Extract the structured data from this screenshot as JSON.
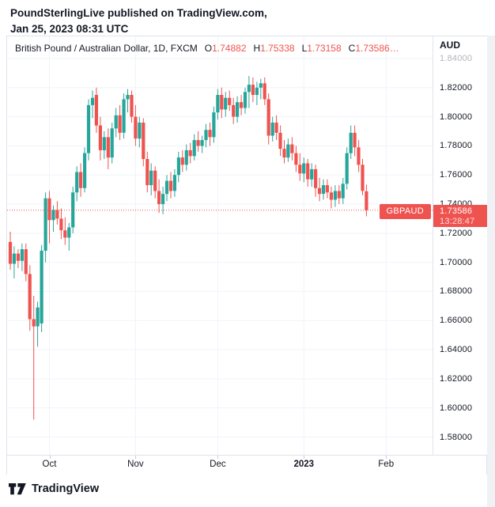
{
  "header": {
    "line1": "PoundSterlingLive published on TradingView.com,",
    "line2": "Jan 25, 2023 08:31 UTC"
  },
  "chart": {
    "title": "British Pound / Australian Dollar, 1D, FXCM",
    "ohlc": {
      "open_label": "O",
      "open": "1.74882",
      "high_label": "H",
      "high": "1.75338",
      "low_label": "L",
      "low": "1.73158",
      "close_label": "C",
      "close": "1.73586…"
    },
    "axis_currency": "AUD",
    "price_label": {
      "symbol": "GBPAUD",
      "price": "1.73586",
      "countdown": "13:28:47"
    }
  },
  "footer": {
    "brand": "TradingView"
  },
  "colors": {
    "up": "#26a69a",
    "down": "#ef5350",
    "badge": "#ef5350",
    "grid": "#f0f3fa",
    "border": "#e0e3eb",
    "text": "#131722",
    "axis_muted": "#b2b5be"
  },
  "chart_data": {
    "type": "candlestick",
    "symbol": "GBPAUD",
    "timeframe": "1D",
    "exchange": "FXCM",
    "title": "British Pound / Australian Dollar, 1D, FXCM",
    "ylabel": "AUD",
    "ylim": [
      1.5678,
      1.8552
    ],
    "y_ticks": [
      1.84,
      1.82,
      1.8,
      1.78,
      1.76,
      1.74,
      1.72,
      1.7,
      1.68,
      1.66,
      1.64,
      1.62,
      1.6,
      1.58
    ],
    "muted_ticks": [
      1.84
    ],
    "x_ticks": [
      {
        "label": "Oct",
        "i": 10
      },
      {
        "label": "Nov",
        "i": 32
      },
      {
        "label": "Dec",
        "i": 53
      },
      {
        "label": "2023",
        "i": 75,
        "bold": true
      },
      {
        "label": "Feb",
        "i": 96
      }
    ],
    "last_price": 1.73586,
    "last_ohlc": {
      "o": 1.74882,
      "h": 1.75338,
      "l": 1.73158,
      "c": 1.73586
    },
    "candles": [
      [
        1.714,
        1.721,
        1.695,
        1.699
      ],
      [
        1.699,
        1.711,
        1.689,
        1.706
      ],
      [
        1.706,
        1.709,
        1.696,
        1.701
      ],
      [
        1.701,
        1.713,
        1.694,
        1.709
      ],
      [
        1.709,
        1.713,
        1.687,
        1.692
      ],
      [
        1.692,
        1.698,
        1.653,
        1.661
      ],
      [
        1.661,
        1.677,
        1.592,
        1.656
      ],
      [
        1.656,
        1.673,
        1.642,
        1.669
      ],
      [
        1.658,
        1.712,
        1.652,
        1.708
      ],
      [
        1.708,
        1.748,
        1.7,
        1.744
      ],
      [
        1.744,
        1.749,
        1.713,
        1.729
      ],
      [
        1.729,
        1.739,
        1.721,
        1.736
      ],
      [
        1.736,
        1.742,
        1.726,
        1.73
      ],
      [
        1.73,
        1.737,
        1.716,
        1.722
      ],
      [
        1.722,
        1.731,
        1.712,
        1.717
      ],
      [
        1.717,
        1.727,
        1.708,
        1.724
      ],
      [
        1.724,
        1.752,
        1.72,
        1.748
      ],
      [
        1.748,
        1.766,
        1.742,
        1.762
      ],
      [
        1.762,
        1.768,
        1.745,
        1.751
      ],
      [
        1.751,
        1.779,
        1.748,
        1.775
      ],
      [
        1.775,
        1.812,
        1.77,
        1.808
      ],
      [
        1.808,
        1.818,
        1.799,
        1.813
      ],
      [
        1.815,
        1.82,
        1.789,
        1.794
      ],
      [
        1.794,
        1.8,
        1.77,
        1.777
      ],
      [
        1.777,
        1.79,
        1.771,
        1.786
      ],
      [
        1.786,
        1.792,
        1.764,
        1.772
      ],
      [
        1.772,
        1.796,
        1.768,
        1.792
      ],
      [
        1.792,
        1.806,
        1.786,
        1.801
      ],
      [
        1.801,
        1.808,
        1.784,
        1.789
      ],
      [
        1.789,
        1.816,
        1.785,
        1.812
      ],
      [
        1.812,
        1.819,
        1.803,
        1.815
      ],
      [
        1.815,
        1.818,
        1.796,
        1.8
      ],
      [
        1.8,
        1.808,
        1.78,
        1.785
      ],
      [
        1.785,
        1.8,
        1.779,
        1.796
      ],
      [
        1.796,
        1.799,
        1.766,
        1.771
      ],
      [
        1.771,
        1.776,
        1.748,
        1.753
      ],
      [
        1.753,
        1.768,
        1.746,
        1.763
      ],
      [
        1.763,
        1.766,
        1.744,
        1.749
      ],
      [
        1.749,
        1.757,
        1.734,
        1.74
      ],
      [
        1.74,
        1.752,
        1.733,
        1.747
      ],
      [
        1.747,
        1.76,
        1.742,
        1.756
      ],
      [
        1.756,
        1.762,
        1.744,
        1.749
      ],
      [
        1.749,
        1.764,
        1.745,
        1.76
      ],
      [
        1.76,
        1.776,
        1.755,
        1.772
      ],
      [
        1.772,
        1.777,
        1.762,
        1.767
      ],
      [
        1.767,
        1.781,
        1.763,
        1.777
      ],
      [
        1.777,
        1.782,
        1.768,
        1.773
      ],
      [
        1.773,
        1.788,
        1.77,
        1.784
      ],
      [
        1.784,
        1.79,
        1.776,
        1.78
      ],
      [
        1.78,
        1.787,
        1.775,
        1.784
      ],
      [
        1.784,
        1.795,
        1.779,
        1.791
      ],
      [
        1.791,
        1.796,
        1.78,
        1.786
      ],
      [
        1.786,
        1.807,
        1.782,
        1.803
      ],
      [
        1.803,
        1.819,
        1.798,
        1.815
      ],
      [
        1.815,
        1.82,
        1.799,
        1.805
      ],
      [
        1.805,
        1.817,
        1.8,
        1.813
      ],
      [
        1.813,
        1.818,
        1.804,
        1.808
      ],
      [
        1.808,
        1.813,
        1.795,
        1.8
      ],
      [
        1.8,
        1.814,
        1.796,
        1.81
      ],
      [
        1.81,
        1.815,
        1.801,
        1.806
      ],
      [
        1.806,
        1.82,
        1.802,
        1.817
      ],
      [
        1.817,
        1.828,
        1.806,
        1.822
      ],
      [
        1.822,
        1.827,
        1.81,
        1.815
      ],
      [
        1.815,
        1.824,
        1.808,
        1.82
      ],
      [
        1.82,
        1.826,
        1.812,
        1.823
      ],
      [
        1.823,
        1.827,
        1.808,
        1.812
      ],
      [
        1.812,
        1.816,
        1.781,
        1.787
      ],
      [
        1.787,
        1.8,
        1.783,
        1.796
      ],
      [
        1.796,
        1.801,
        1.784,
        1.789
      ],
      [
        1.789,
        1.794,
        1.773,
        1.778
      ],
      [
        1.778,
        1.784,
        1.768,
        1.772
      ],
      [
        1.772,
        1.785,
        1.769,
        1.781
      ],
      [
        1.781,
        1.786,
        1.77,
        1.775
      ],
      [
        1.775,
        1.78,
        1.762,
        1.767
      ],
      [
        1.767,
        1.775,
        1.756,
        1.761
      ],
      [
        1.761,
        1.772,
        1.755,
        1.768
      ],
      [
        1.768,
        1.771,
        1.752,
        1.757
      ],
      [
        1.757,
        1.768,
        1.752,
        1.764
      ],
      [
        1.764,
        1.767,
        1.745,
        1.751
      ],
      [
        1.751,
        1.758,
        1.742,
        1.747
      ],
      [
        1.747,
        1.757,
        1.743,
        1.753
      ],
      [
        1.753,
        1.757,
        1.744,
        1.748
      ],
      [
        1.748,
        1.752,
        1.737,
        1.743
      ],
      [
        1.743,
        1.753,
        1.738,
        1.749
      ],
      [
        1.749,
        1.753,
        1.74,
        1.744
      ],
      [
        1.744,
        1.758,
        1.74,
        1.754
      ],
      [
        1.754,
        1.779,
        1.75,
        1.775
      ],
      [
        1.775,
        1.794,
        1.771,
        1.789
      ],
      [
        1.789,
        1.794,
        1.773,
        1.779
      ],
      [
        1.779,
        1.784,
        1.762,
        1.767
      ],
      [
        1.767,
        1.771,
        1.746,
        1.749
      ],
      [
        1.74882,
        1.75338,
        1.73158,
        1.73586
      ]
    ]
  }
}
